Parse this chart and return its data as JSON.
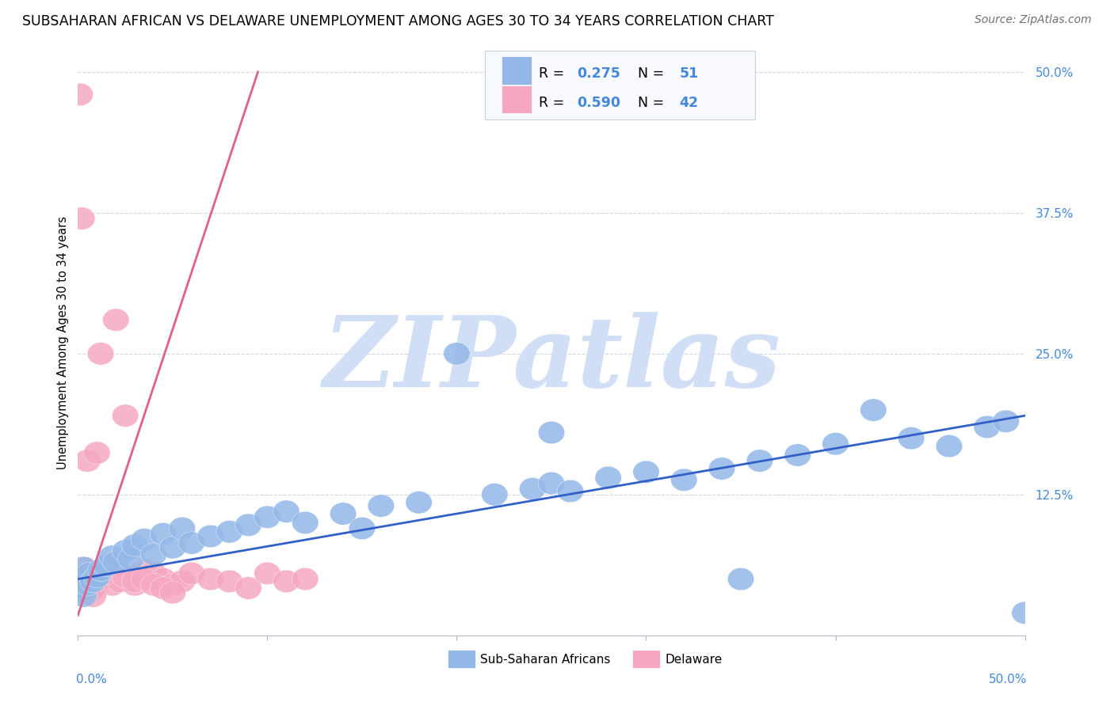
{
  "title": "SUBSAHARAN AFRICAN VS DELAWARE UNEMPLOYMENT AMONG AGES 30 TO 34 YEARS CORRELATION CHART",
  "source": "Source: ZipAtlas.com",
  "ylabel": "Unemployment Among Ages 30 to 34 years",
  "yticks": [
    0.0,
    0.125,
    0.25,
    0.375,
    0.5
  ],
  "ytick_labels": [
    "",
    "12.5%",
    "25.0%",
    "37.5%",
    "50.0%"
  ],
  "xlim": [
    0.0,
    0.5
  ],
  "ylim": [
    0.0,
    0.52
  ],
  "blue_R": 0.275,
  "blue_N": 51,
  "pink_R": 0.59,
  "pink_N": 42,
  "blue_color": "#93b8e8",
  "pink_color": "#f5a8bf",
  "blue_line_color": "#3060c8",
  "pink_line_color": "#e0608a",
  "watermark": "ZIPatlas",
  "watermark_color": "#d0dff5",
  "background_color": "#ffffff",
  "grid_color": "#d0d8e8",
  "legend_box_color": "#f8f9ff",
  "legend_border_color": "#c8d0e0",
  "tick_color": "#4488dd",
  "title_fontsize": 12.5,
  "source_fontsize": 10,
  "blue_scatter_x": [
    0.001,
    0.002,
    0.003,
    0.003,
    0.005,
    0.006,
    0.008,
    0.01,
    0.012,
    0.015,
    0.018,
    0.02,
    0.025,
    0.028,
    0.03,
    0.035,
    0.04,
    0.045,
    0.05,
    0.055,
    0.06,
    0.07,
    0.08,
    0.09,
    0.1,
    0.11,
    0.12,
    0.14,
    0.15,
    0.16,
    0.18,
    0.2,
    0.22,
    0.24,
    0.25,
    0.26,
    0.28,
    0.3,
    0.32,
    0.34,
    0.36,
    0.38,
    0.4,
    0.42,
    0.44,
    0.46,
    0.48,
    0.49,
    0.5,
    0.35,
    0.25
  ],
  "blue_scatter_y": [
    0.05,
    0.04,
    0.06,
    0.035,
    0.045,
    0.055,
    0.048,
    0.052,
    0.058,
    0.062,
    0.07,
    0.065,
    0.075,
    0.068,
    0.08,
    0.085,
    0.072,
    0.09,
    0.078,
    0.095,
    0.082,
    0.088,
    0.092,
    0.098,
    0.105,
    0.11,
    0.1,
    0.108,
    0.095,
    0.115,
    0.118,
    0.25,
    0.125,
    0.13,
    0.135,
    0.128,
    0.14,
    0.145,
    0.138,
    0.148,
    0.155,
    0.16,
    0.17,
    0.2,
    0.175,
    0.168,
    0.185,
    0.19,
    0.02,
    0.05,
    0.18
  ],
  "pink_scatter_x": [
    0.001,
    0.002,
    0.003,
    0.004,
    0.005,
    0.005,
    0.006,
    0.007,
    0.008,
    0.01,
    0.012,
    0.015,
    0.018,
    0.02,
    0.022,
    0.025,
    0.028,
    0.03,
    0.035,
    0.04,
    0.045,
    0.05,
    0.055,
    0.06,
    0.07,
    0.08,
    0.09,
    0.1,
    0.11,
    0.12,
    0.005,
    0.01,
    0.015,
    0.02,
    0.025,
    0.03,
    0.035,
    0.04,
    0.045,
    0.05,
    0.003,
    0.008
  ],
  "pink_scatter_y": [
    0.48,
    0.37,
    0.06,
    0.05,
    0.055,
    0.045,
    0.048,
    0.04,
    0.042,
    0.055,
    0.25,
    0.052,
    0.045,
    0.28,
    0.048,
    0.195,
    0.052,
    0.045,
    0.058,
    0.055,
    0.05,
    0.045,
    0.048,
    0.055,
    0.05,
    0.048,
    0.042,
    0.055,
    0.048,
    0.05,
    0.155,
    0.162,
    0.055,
    0.058,
    0.052,
    0.048,
    0.05,
    0.045,
    0.042,
    0.038,
    0.038,
    0.035
  ],
  "blue_trend": [
    0.0,
    0.5,
    0.05,
    0.195
  ],
  "pink_trend_x0": 0.0,
  "pink_trend_y0": 0.018,
  "pink_trend_x1": 0.095,
  "pink_trend_y1": 0.5
}
